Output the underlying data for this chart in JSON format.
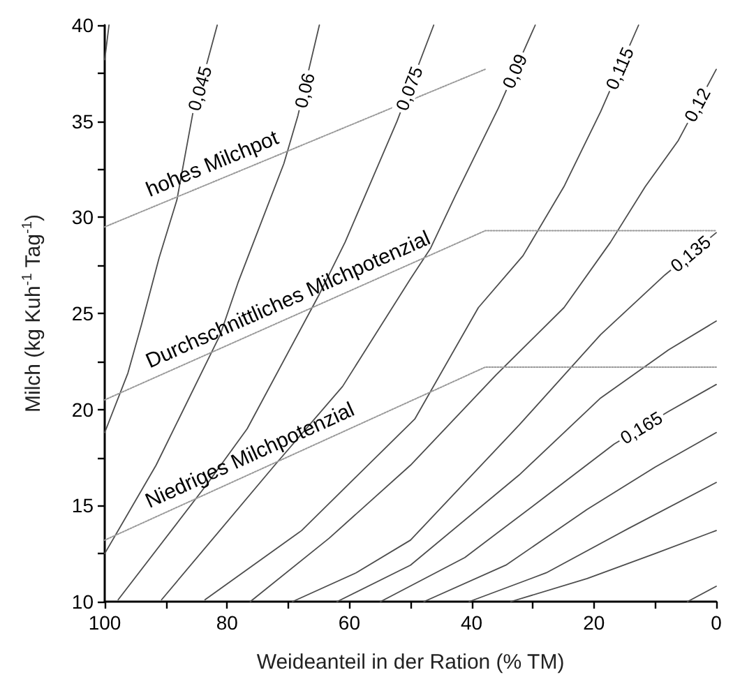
{
  "chart_data": {
    "type": "line",
    "xlabel": "Weideanteil in der Ration (% TM)",
    "ylabel": "Milch (kg Kuh$^{-1}$ Tag$^{-1}$)",
    "xlim": [
      100,
      0
    ],
    "xticks": [
      100,
      {
        "value": 90,
        "label": null
      },
      80,
      {
        "value": 70,
        "label": null
      },
      60,
      {
        "value": 50,
        "label": null
      },
      40,
      {
        "value": 30,
        "label": null
      },
      20,
      {
        "value": 10,
        "label": null
      },
      0
    ],
    "ylim": [
      10,
      40
    ],
    "yticks": [
      10,
      {
        "value": 12.5,
        "label": null
      },
      15,
      {
        "value": 17.5,
        "label": null
      },
      20,
      {
        "value": 22.5,
        "label": null
      },
      25,
      {
        "value": 27.5,
        "label": null
      },
      30,
      {
        "value": 32.5,
        "label": null
      },
      35,
      {
        "value": 37.5,
        "label": null
      },
      40
    ],
    "grid": false,
    "marker": "none",
    "line_style": "solid",
    "series": [
      {
        "color": "#4d4d4d",
        "x": [
          99.3,
          100
        ],
        "values": [
          40,
          38.2
        ]
      },
      {
        "color": "#4d4d4d",
        "x": [
          81.6,
          83.3,
          85.6,
          88.2,
          91.1,
          94.0,
          96.2,
          100
        ],
        "values": [
          40,
          38.0,
          35.4,
          30.9,
          27.9,
          24.4,
          21.9,
          18.8
        ]
      },
      {
        "color": "#4d4d4d",
        "x": [
          64.9,
          68.4,
          70.7,
          78.2,
          81.1,
          91.6,
          100
        ],
        "values": [
          40,
          35.3,
          32.8,
          26.6,
          23.9,
          17.1,
          12.5
        ]
      },
      {
        "color": "#4d4d4d",
        "x": [
          46.2,
          52.2,
          60.7,
          64.9,
          76.7,
          83.3,
          97.8
        ],
        "values": [
          40,
          35.0,
          28.7,
          26.0,
          19.0,
          16.1,
          10.1
        ]
      },
      {
        "color": "#4d4d4d",
        "x": [
          29.6,
          35.6,
          42.7,
          46.7,
          50,
          61.1,
          72.2,
          90.7
        ],
        "values": [
          40,
          35.7,
          31.1,
          28.4,
          26.8,
          21.2,
          17.1,
          10.1
        ]
      },
      {
        "color": "#4d4d4d",
        "x": [
          12.7,
          18.9,
          24.9,
          31.6,
          38.9,
          49.3,
          67.8,
          83.6
        ],
        "values": [
          40,
          35.5,
          31.6,
          28.0,
          25.3,
          19.5,
          13.7,
          10.1
        ]
      },
      {
        "color": "#4d4d4d",
        "x": [
          0,
          6.2,
          11.6,
          17.3,
          24.9,
          36.0,
          50.0,
          63.3,
          76.2
        ],
        "values": [
          37.7,
          34.0,
          31.6,
          28.7,
          25.3,
          21.8,
          17.1,
          13.3,
          10
        ]
      },
      {
        "color": "#4d4d4d",
        "x": [
          0,
          8.4,
          18.9,
          32.2,
          50,
          58.9,
          69.3
        ],
        "values": [
          29.2,
          27.0,
          23.9,
          19.2,
          13.2,
          11.5,
          10
        ]
      },
      {
        "color": "#4d4d4d",
        "x": [
          0,
          7.8,
          18.9,
          32.2,
          50,
          62
        ],
        "values": [
          24.6,
          23.1,
          20.6,
          16.6,
          11.9,
          10
        ]
      },
      {
        "color": "#4d4d4d",
        "x": [
          0,
          7.8,
          16.7,
          27.8,
          41.1,
          54.9
        ],
        "values": [
          21.3,
          19.9,
          18.2,
          15.5,
          12.3,
          10
        ]
      },
      {
        "color": "#4d4d4d",
        "x": [
          0,
          10,
          21.1,
          34.4,
          47.8
        ],
        "values": [
          18.8,
          17.0,
          14.8,
          11.9,
          10
        ]
      },
      {
        "color": "#4d4d4d",
        "x": [
          0,
          14.4,
          27.8,
          40.4
        ],
        "values": [
          16.2,
          13.8,
          11.5,
          10
        ]
      },
      {
        "color": "#4d4d4d",
        "x": [
          0,
          10,
          21.1,
          33.6
        ],
        "values": [
          13.7,
          12.5,
          11.2,
          10
        ]
      },
      {
        "color": "#4d4d4d",
        "x": [
          0,
          4.7
        ],
        "values": [
          10.8,
          10
        ]
      },
      {
        "color": "#999999",
        "line_style": "dotted",
        "x": [
          100,
          37.8
        ],
        "values": [
          29.5,
          37.7
        ]
      },
      {
        "color": "#999999",
        "line_style": "dotted",
        "x": [
          100,
          37.8,
          0
        ],
        "values": [
          20.5,
          29.3,
          29.3
        ]
      },
      {
        "color": "#999999",
        "line_style": "dotted",
        "x": [
          100,
          37.8,
          0
        ],
        "values": [
          13.2,
          22.2,
          22.2
        ]
      }
    ],
    "annotations": [
      {
        "text": "0,045",
        "x": 84.45,
        "y": 36.7
      },
      {
        "text": "0,06",
        "x": 67.3,
        "y": 36.6
      },
      {
        "text": "0,075",
        "x": 50.2,
        "y": 36.7
      },
      {
        "text": "0,09",
        "x": 32.95,
        "y": 37.6
      },
      {
        "text": "0,115",
        "x": 15.8,
        "y": 37.75
      },
      {
        "text": "0,12",
        "x": 3.1,
        "y": 35.85
      },
      {
        "text": "0,135",
        "x": 4.2,
        "y": 28.1
      },
      {
        "text": "0,165",
        "x": 12.25,
        "y": 19.05
      },
      "hohes Milchpot",
      "Durchschnittliches Milchpotenzial",
      "Niedriges Milchpotenzial"
    ]
  }
}
